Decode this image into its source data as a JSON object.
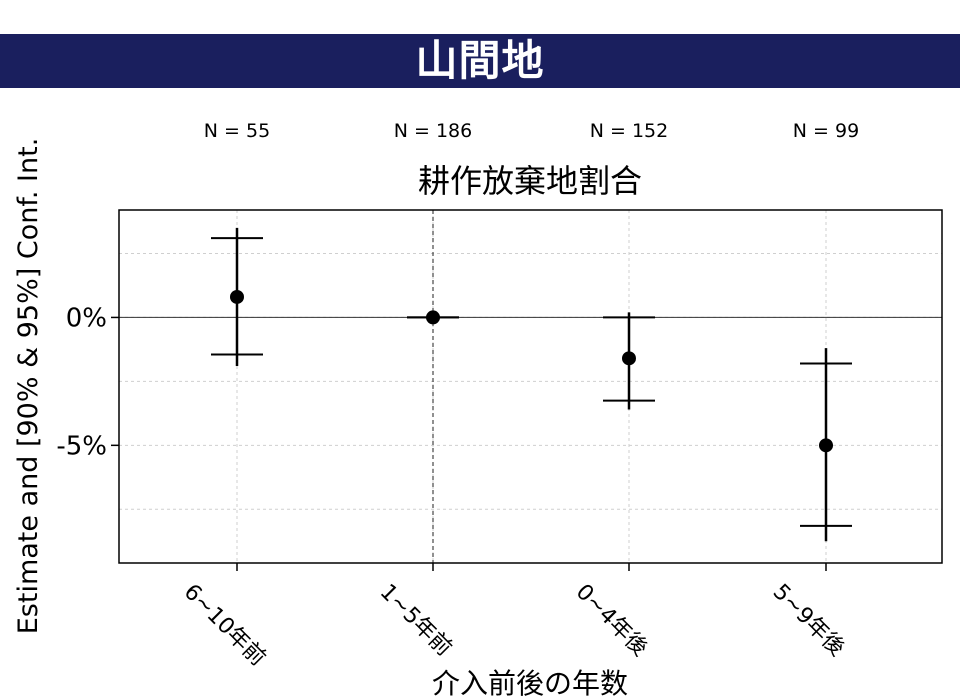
{
  "banner": {
    "title": "山間地",
    "background": "#1a1f5e"
  },
  "chart_data": {
    "type": "scatter",
    "title": "耕作放棄地割合",
    "xlabel": "介入前後の年数",
    "ylabel": "Estimate and [90% & 95%] Conf. Int.",
    "categories": [
      "6~10年前",
      "1~5年前",
      "0~4年後",
      "5~9年後"
    ],
    "n_labels": [
      "N = 55",
      "N = 186",
      "N = 152",
      "N = 99"
    ],
    "estimates": [
      0.8,
      0.0,
      -1.6,
      -5.0
    ],
    "ci90": [
      [
        -1.45,
        3.1
      ],
      [
        0.0,
        0.0
      ],
      [
        -3.25,
        0.0
      ],
      [
        -8.15,
        -1.8
      ]
    ],
    "ci95": [
      [
        -1.9,
        3.5
      ],
      [
        0.0,
        0.0
      ],
      [
        -3.6,
        0.2
      ],
      [
        -8.75,
        -1.2
      ]
    ],
    "ylim": [
      -9.6,
      4.2
    ],
    "yticks": [
      0,
      -5
    ],
    "ytick_labels": [
      "0%",
      "-5%"
    ],
    "reference_line_y": 0,
    "reference_category": "1~5年前",
    "grid": true
  }
}
